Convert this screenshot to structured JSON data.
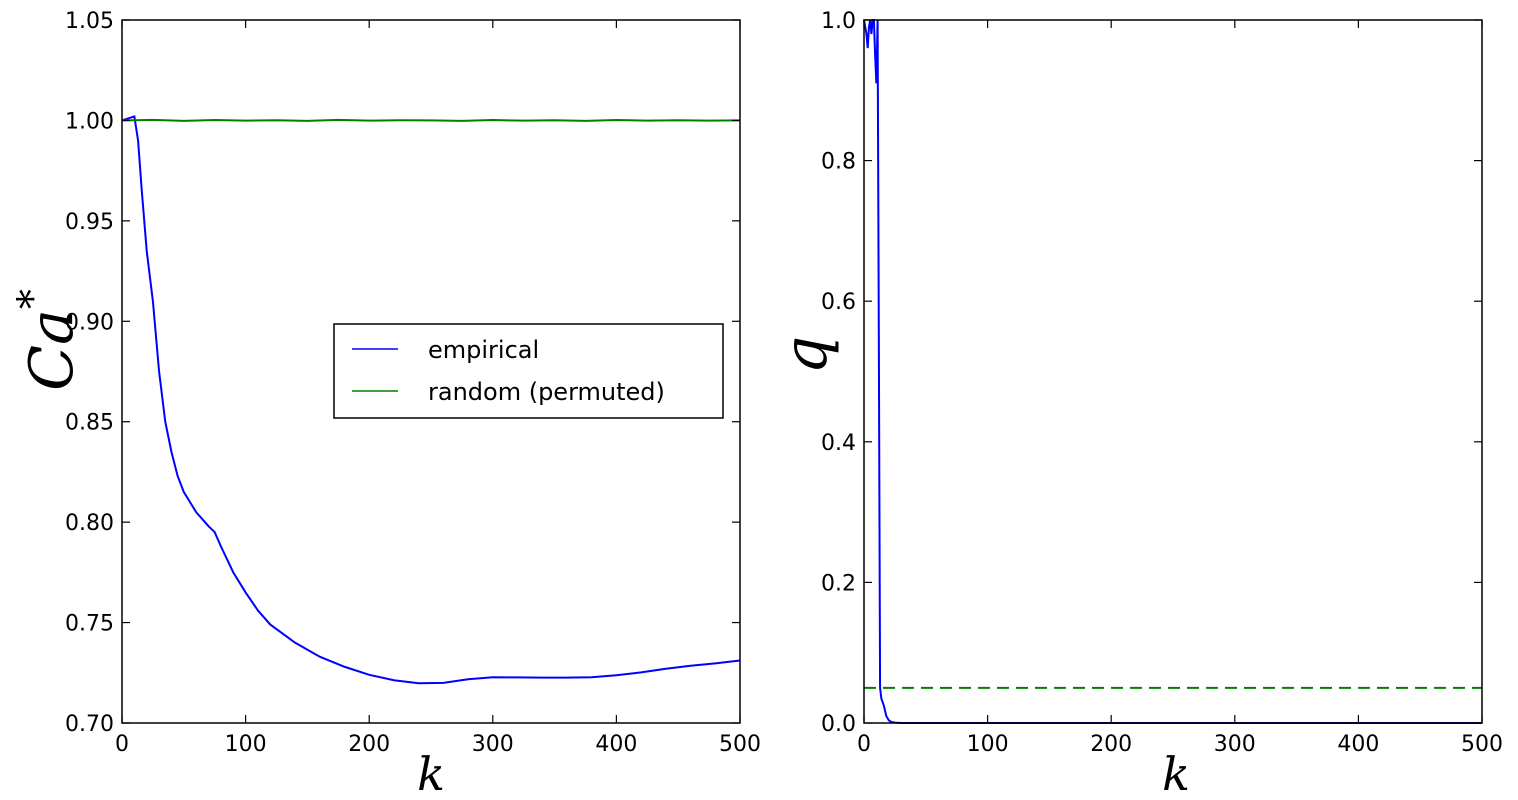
{
  "chart_data": [
    {
      "type": "line",
      "xlabel": "k",
      "ylabel_main": "Ca",
      "ylabel_sup": "*",
      "xlim": [
        0,
        500
      ],
      "ylim": [
        0.7,
        1.05
      ],
      "xticks": [
        "0",
        "100",
        "200",
        "300",
        "400",
        "500"
      ],
      "yticks": [
        "0.70",
        "0.75",
        "0.80",
        "0.85",
        "0.90",
        "0.95",
        "1.00",
        "1.05"
      ],
      "grid": false,
      "legend_position": "center-right",
      "series": [
        {
          "name": "empirical",
          "color": "#0000ff",
          "x": [
            0,
            5,
            10,
            13,
            16,
            20,
            25,
            30,
            35,
            40,
            45,
            50,
            60,
            70,
            75,
            80,
            90,
            100,
            110,
            120,
            140,
            160,
            180,
            200,
            220,
            240,
            260,
            280,
            300,
            320,
            340,
            360,
            380,
            400,
            420,
            440,
            460,
            480,
            500
          ],
          "y": [
            1.0,
            1.001,
            1.002,
            0.99,
            0.965,
            0.935,
            0.91,
            0.875,
            0.85,
            0.835,
            0.823,
            0.815,
            0.805,
            0.798,
            0.795,
            0.788,
            0.775,
            0.765,
            0.756,
            0.749,
            0.74,
            0.733,
            0.728,
            0.724,
            0.7213,
            0.7198,
            0.72,
            0.7218,
            0.7228,
            0.7227,
            0.7226,
            0.7226,
            0.7228,
            0.7238,
            0.7252,
            0.727,
            0.7285,
            0.7297,
            0.7311
          ]
        },
        {
          "name": "random (permuted)",
          "color": "#008000",
          "x": [
            0,
            25,
            50,
            75,
            100,
            125,
            150,
            175,
            200,
            225,
            250,
            275,
            300,
            325,
            350,
            375,
            400,
            425,
            450,
            475,
            500
          ],
          "y": [
            1.0,
            1.0003,
            0.9998,
            1.0002,
            0.9999,
            1.0001,
            0.9998,
            1.0003,
            0.9999,
            1.0001,
            1.0,
            0.9998,
            1.0002,
            0.9999,
            1.0001,
            0.9998,
            1.0002,
            0.9999,
            1.0001,
            0.9999,
            1.0
          ]
        }
      ]
    },
    {
      "type": "line",
      "xlabel": "k",
      "ylabel": "q",
      "xlim": [
        0,
        500
      ],
      "ylim": [
        0.0,
        1.0
      ],
      "xticks": [
        "0",
        "100",
        "200",
        "300",
        "400",
        "500"
      ],
      "yticks": [
        "0.0",
        "0.2",
        "0.4",
        "0.6",
        "0.8",
        "1.0"
      ],
      "grid": false,
      "series": [
        {
          "color": "#0000ff",
          "x": [
            0,
            2,
            3,
            4,
            5,
            6,
            7,
            8,
            9,
            10,
            11,
            12,
            13,
            14,
            15,
            16,
            18,
            20,
            22,
            25,
            30,
            500
          ],
          "y": [
            1.0,
            0.98,
            0.96,
            0.99,
            1.0,
            0.98,
            1.0,
            1.0,
            0.95,
            0.91,
            1.0,
            0.55,
            0.05,
            0.035,
            0.03,
            0.025,
            0.01,
            0.004,
            0.0015,
            0.0005,
            0.0,
            0.0
          ]
        },
        {
          "style": "dashed",
          "color": "#008000",
          "x": [
            0,
            500
          ],
          "y": [
            0.05,
            0.05
          ]
        }
      ]
    }
  ]
}
